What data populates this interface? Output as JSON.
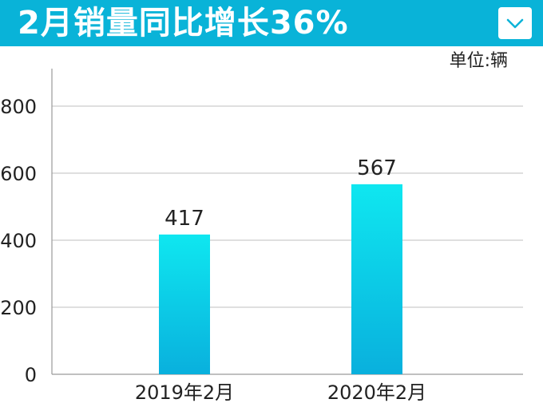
{
  "header": {
    "title": "2月销量同比增长36%",
    "dropdown_icon": "chevron-down-icon"
  },
  "unit_label": "单位:辆",
  "colors": {
    "header_bg": "#09b3d8",
    "bar_top": "#0fe7f0",
    "bar_bottom": "#09b0dd",
    "grid": "#bfbfbf"
  },
  "chart_data": {
    "type": "bar",
    "categories": [
      "2019年2月",
      "2020年2月"
    ],
    "values": [
      417,
      567
    ],
    "data_labels": [
      "417",
      "567"
    ],
    "yticks": [
      "0",
      "200",
      "400",
      "600",
      "800"
    ],
    "ylim": [
      0,
      900
    ],
    "grid": true,
    "legend": "none"
  }
}
